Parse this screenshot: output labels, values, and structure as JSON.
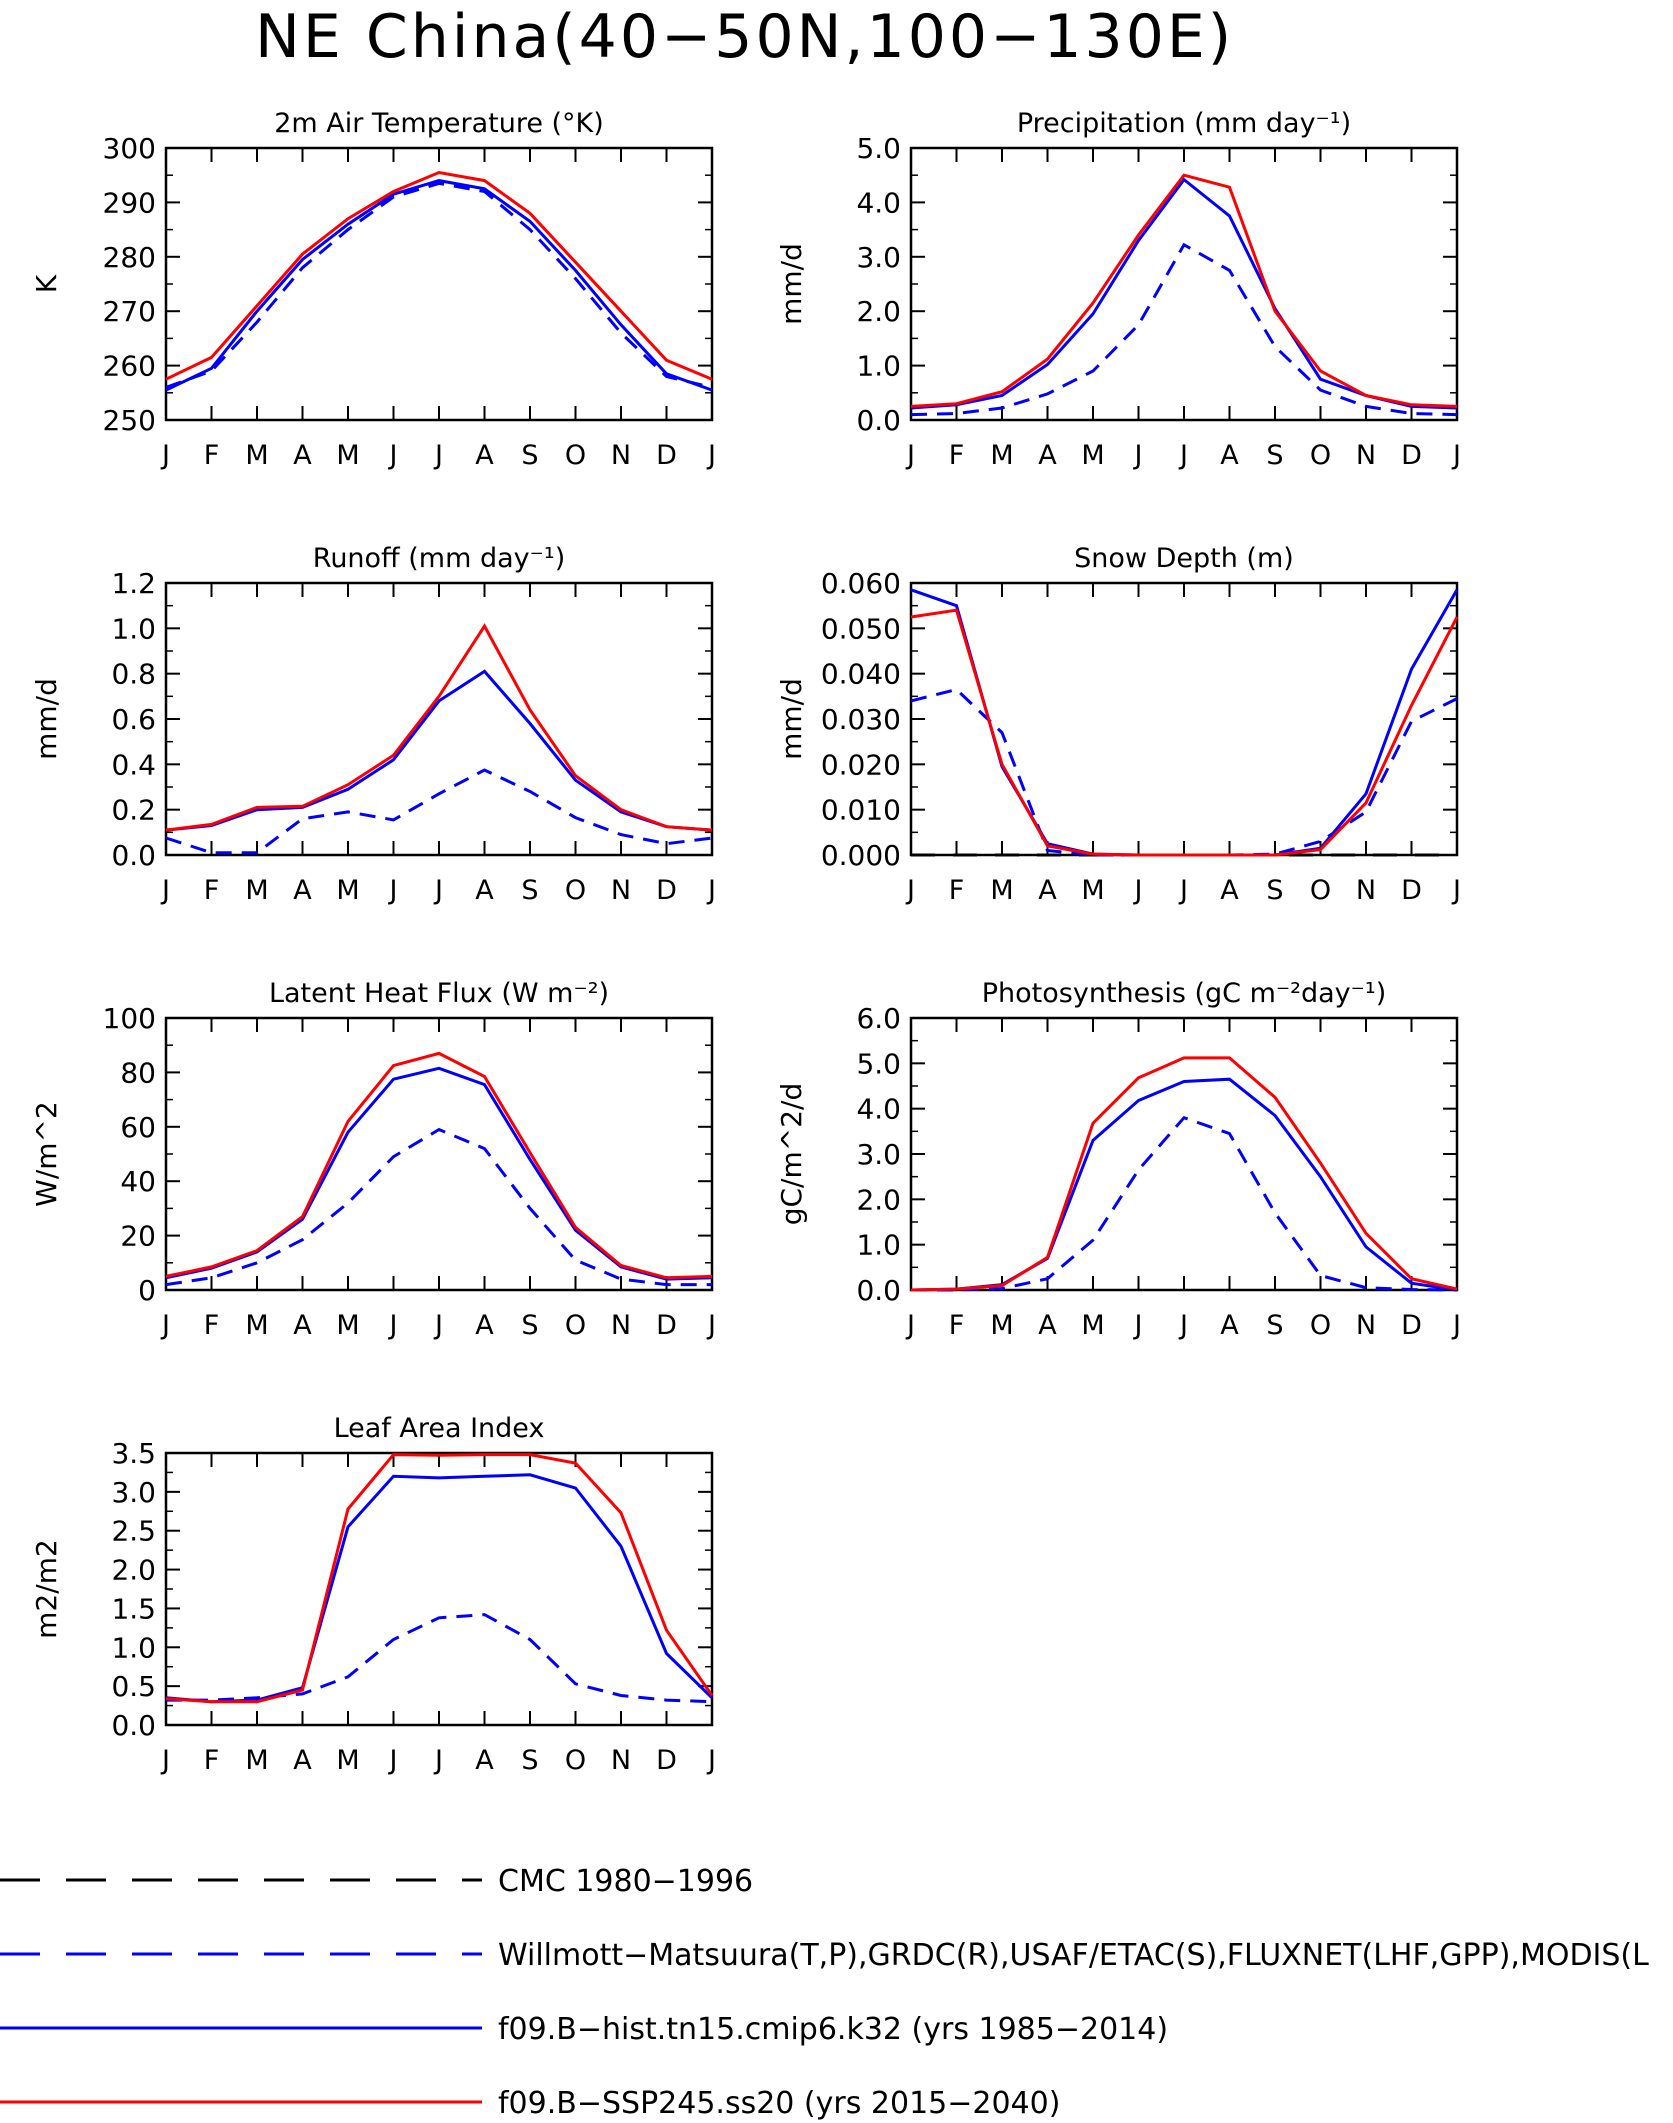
{
  "figure": {
    "title": "NE China(40−50N,100−130E)"
  },
  "colors": {
    "obs": "#0000ff",
    "hist": "#0000ff",
    "ssp": "#ff0000",
    "cmc": "#000000"
  },
  "months": [
    "J",
    "F",
    "M",
    "A",
    "M",
    "J",
    "J",
    "A",
    "S",
    "O",
    "N",
    "D",
    "J"
  ],
  "legend": [
    {
      "label": "CMC 1980−1996",
      "color": "#000000",
      "dash": true
    },
    {
      "label": "Willmott−Matsuura(T,P),GRDC(R),USAF/ETAC(S),FLUXNET(LHF,GPP),MODIS(L",
      "color": "#0000ff",
      "dash": true
    },
    {
      "label": "f09.B−hist.tn15.cmip6.k32 (yrs 1985−2014)",
      "color": "#0000ff",
      "dash": false
    },
    {
      "label": "f09.B−SSP245.ss20 (yrs 2015−2040)",
      "color": "#ff0000",
      "dash": false
    }
  ],
  "chart_data": [
    {
      "type": "line",
      "title": "2m Air Temperature (°K)",
      "ylabel": "K",
      "ylim": [
        250,
        300
      ],
      "yticks": [
        "250",
        "260",
        "270",
        "280",
        "290",
        "300"
      ],
      "categories": [
        "J",
        "F",
        "M",
        "A",
        "M",
        "J",
        "J",
        "A",
        "S",
        "O",
        "N",
        "D",
        "J"
      ],
      "series": [
        {
          "role": "obs",
          "values": [
            256,
            259,
            268,
            278,
            285,
            291,
            293.5,
            292,
            285,
            276,
            266,
            258,
            256
          ]
        },
        {
          "role": "hist",
          "values": [
            255.5,
            259.5,
            270,
            279.5,
            286,
            291.5,
            294,
            292.5,
            286.5,
            277.5,
            267.5,
            258.5,
            255.5
          ]
        },
        {
          "role": "ssp",
          "values": [
            257.5,
            261.5,
            271,
            280.5,
            287,
            292,
            295.5,
            294,
            288,
            279,
            270,
            261,
            257.5
          ]
        }
      ]
    },
    {
      "type": "line",
      "title": "Precipitation (mm day⁻¹)",
      "ylabel": "mm/d",
      "ylim": [
        0,
        5
      ],
      "yticks": [
        "0.0",
        "1.0",
        "2.0",
        "3.0",
        "4.0",
        "5.0"
      ],
      "categories": [
        "J",
        "F",
        "M",
        "A",
        "M",
        "J",
        "J",
        "A",
        "S",
        "O",
        "N",
        "D",
        "J"
      ],
      "series": [
        {
          "role": "obs",
          "values": [
            0.1,
            0.12,
            0.22,
            0.48,
            0.9,
            1.75,
            3.22,
            2.75,
            1.35,
            0.55,
            0.25,
            0.12,
            0.1
          ]
        },
        {
          "role": "hist",
          "values": [
            0.22,
            0.28,
            0.45,
            1.02,
            1.95,
            3.3,
            4.42,
            3.75,
            2.05,
            0.75,
            0.45,
            0.25,
            0.22
          ]
        },
        {
          "role": "ssp",
          "values": [
            0.25,
            0.3,
            0.52,
            1.12,
            2.15,
            3.4,
            4.5,
            4.28,
            2.0,
            0.9,
            0.45,
            0.28,
            0.25
          ]
        }
      ]
    },
    {
      "type": "line",
      "title": "Runoff (mm day⁻¹)",
      "ylabel": "mm/d",
      "ylim": [
        0,
        1.2
      ],
      "yticks": [
        "0.0",
        "0.2",
        "0.4",
        "0.6",
        "0.8",
        "1.0",
        "1.2"
      ],
      "categories": [
        "J",
        "F",
        "M",
        "A",
        "M",
        "J",
        "J",
        "A",
        "S",
        "O",
        "N",
        "D",
        "J"
      ],
      "series": [
        {
          "role": "obs",
          "values": [
            0.075,
            0.01,
            0.01,
            0.16,
            0.19,
            0.155,
            0.27,
            0.375,
            0.28,
            0.165,
            0.09,
            0.05,
            0.075
          ]
        },
        {
          "role": "hist",
          "values": [
            0.11,
            0.13,
            0.2,
            0.21,
            0.29,
            0.42,
            0.68,
            0.81,
            0.58,
            0.33,
            0.19,
            0.125,
            0.11
          ]
        },
        {
          "role": "ssp",
          "values": [
            0.11,
            0.135,
            0.21,
            0.215,
            0.31,
            0.44,
            0.7,
            1.01,
            0.64,
            0.35,
            0.2,
            0.125,
            0.11
          ]
        }
      ]
    },
    {
      "type": "line",
      "title": "Snow Depth (m)",
      "ylabel": "mm/d",
      "ylim": [
        0,
        0.06
      ],
      "yticks": [
        "0.000",
        "0.010",
        "0.020",
        "0.030",
        "0.040",
        "0.050",
        "0.060"
      ],
      "categories": [
        "J",
        "F",
        "M",
        "A",
        "M",
        "J",
        "J",
        "A",
        "S",
        "O",
        "N",
        "D",
        "J"
      ],
      "series": [
        {
          "role": "cmc",
          "values": [
            0,
            0,
            0,
            0,
            0,
            0,
            0,
            0,
            0,
            0,
            0,
            0,
            0
          ]
        },
        {
          "role": "obs",
          "values": [
            0.034,
            0.0365,
            0.027,
            0.001,
            0.0,
            0.0,
            0.0,
            0.0,
            0.0002,
            0.003,
            0.0095,
            0.0295,
            0.0345
          ]
        },
        {
          "role": "hist",
          "values": [
            0.0585,
            0.055,
            0.0195,
            0.0025,
            0.0002,
            0.0,
            0.0,
            0.0,
            0.0,
            0.0015,
            0.0135,
            0.041,
            0.0585
          ]
        },
        {
          "role": "ssp",
          "values": [
            0.0525,
            0.054,
            0.02,
            0.002,
            0.0002,
            0.0,
            0.0,
            0.0,
            0.0,
            0.0012,
            0.0115,
            0.033,
            0.0525
          ]
        }
      ]
    },
    {
      "type": "line",
      "title": "Latent Heat Flux (W m⁻²)",
      "ylabel": "W/m^2",
      "ylim": [
        0,
        100
      ],
      "yticks": [
        "0",
        "20",
        "40",
        "60",
        "80",
        "100"
      ],
      "categories": [
        "J",
        "F",
        "M",
        "A",
        "M",
        "J",
        "J",
        "A",
        "S",
        "O",
        "N",
        "D",
        "J"
      ],
      "series": [
        {
          "role": "obs",
          "values": [
            2,
            4.5,
            10,
            18.5,
            32,
            49,
            59,
            52,
            30,
            11,
            4,
            2,
            2
          ]
        },
        {
          "role": "hist",
          "values": [
            4.5,
            8,
            14,
            26,
            58,
            77.5,
            81.5,
            75.5,
            48,
            22,
            8.5,
            4,
            4.5
          ]
        },
        {
          "role": "ssp",
          "values": [
            5,
            8.5,
            14.5,
            27,
            62,
            82.5,
            87,
            78.5,
            50.5,
            23,
            9,
            4.5,
            5
          ]
        }
      ]
    },
    {
      "type": "line",
      "title": "Photosynthesis (gC m⁻²day⁻¹)",
      "ylabel": "gC/m^2/d",
      "ylim": [
        0,
        6
      ],
      "yticks": [
        "0.0",
        "1.0",
        "2.0",
        "3.0",
        "4.0",
        "5.0",
        "6.0"
      ],
      "categories": [
        "J",
        "F",
        "M",
        "A",
        "M",
        "J",
        "J",
        "A",
        "S",
        "O",
        "N",
        "D",
        "J"
      ],
      "series": [
        {
          "role": "obs",
          "values": [
            0.0,
            0.0,
            0.03,
            0.25,
            1.1,
            2.65,
            3.8,
            3.45,
            1.7,
            0.32,
            0.05,
            0.01,
            0.0
          ]
        },
        {
          "role": "hist",
          "values": [
            0.0,
            0.02,
            0.12,
            0.7,
            3.3,
            4.18,
            4.6,
            4.65,
            3.85,
            2.5,
            0.95,
            0.15,
            0.0
          ]
        },
        {
          "role": "ssp",
          "values": [
            0.0,
            0.02,
            0.1,
            0.72,
            3.68,
            4.68,
            5.12,
            5.12,
            4.25,
            2.8,
            1.25,
            0.25,
            0.02
          ]
        }
      ]
    },
    {
      "type": "line",
      "title": "Leaf Area Index",
      "ylabel": "m2/m2",
      "ylim": [
        0,
        3.5
      ],
      "yticks": [
        "0.0",
        "0.5",
        "1.0",
        "1.5",
        "2.0",
        "2.5",
        "3.0",
        "3.5"
      ],
      "categories": [
        "J",
        "F",
        "M",
        "A",
        "M",
        "J",
        "J",
        "A",
        "S",
        "O",
        "N",
        "D",
        "J"
      ],
      "series": [
        {
          "role": "obs",
          "values": [
            0.32,
            0.32,
            0.35,
            0.4,
            0.62,
            1.1,
            1.38,
            1.42,
            1.1,
            0.53,
            0.38,
            0.32,
            0.3
          ]
        },
        {
          "role": "hist",
          "values": [
            0.35,
            0.3,
            0.32,
            0.48,
            2.55,
            3.2,
            3.18,
            3.2,
            3.22,
            3.05,
            2.3,
            0.92,
            0.35
          ]
        },
        {
          "role": "ssp",
          "values": [
            0.34,
            0.3,
            0.3,
            0.45,
            2.78,
            3.48,
            3.47,
            3.48,
            3.48,
            3.37,
            2.73,
            1.22,
            0.38
          ]
        }
      ]
    }
  ]
}
